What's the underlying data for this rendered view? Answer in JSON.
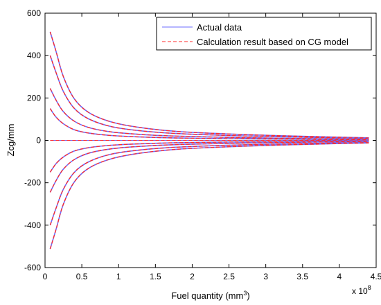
{
  "chart_data": {
    "type": "line",
    "title": "",
    "xlabel": "Fuel quantity (mm",
    "xlabel_sup": "3",
    "xlabel_end": ")",
    "ylabel": "Zcg/mm",
    "x_multiplier": "x 10",
    "x_multiplier_exp": "8",
    "xlim": [
      0,
      4.5
    ],
    "ylim": [
      -600,
      600
    ],
    "x_ticks": [
      "0",
      "0.5",
      "1",
      "1.5",
      "2",
      "2.5",
      "3",
      "3.5",
      "4",
      "4.5"
    ],
    "y_ticks": [
      "-600",
      "-400",
      "-200",
      "0",
      "200",
      "400",
      "600"
    ],
    "legend_position": "top-right",
    "grid": false,
    "colors": {
      "actual": "#6b6bff",
      "model": "#ff2a2a"
    },
    "series": [
      {
        "name": "Actual data",
        "style": "solid"
      },
      {
        "name": "Calculation result based on CG model",
        "style": "dashed"
      }
    ],
    "curves": [
      {
        "x": [
          0.07,
          0.15,
          0.25,
          0.4,
          0.6,
          0.9,
          1.3,
          1.8,
          2.5,
          3.2,
          4.0,
          4.4
        ],
        "y": [
          512,
          420,
          300,
          195,
          130,
          87,
          60,
          42,
          30,
          22,
          15,
          12
        ]
      },
      {
        "x": [
          0.07,
          0.15,
          0.25,
          0.4,
          0.6,
          0.9,
          1.3,
          1.8,
          2.5,
          3.2,
          4.0,
          4.4
        ],
        "y": [
          400,
          320,
          230,
          150,
          100,
          65,
          45,
          32,
          23,
          17,
          12,
          10
        ]
      },
      {
        "x": [
          0.07,
          0.15,
          0.25,
          0.4,
          0.6,
          0.9,
          1.3,
          1.8,
          2.5,
          3.2,
          4.0,
          4.4
        ],
        "y": [
          245,
          190,
          135,
          90,
          60,
          40,
          28,
          20,
          14,
          10,
          7,
          6
        ]
      },
      {
        "x": [
          0.07,
          0.15,
          0.25,
          0.4,
          0.6,
          0.9,
          1.3,
          1.8,
          2.5,
          3.2,
          4.0,
          4.4
        ],
        "y": [
          150,
          110,
          78,
          50,
          34,
          23,
          16,
          11,
          8,
          6,
          4,
          3
        ]
      },
      {
        "x": [
          0.07,
          0.15,
          0.25,
          0.4,
          0.6,
          0.9,
          1.3,
          1.8,
          2.5,
          3.2,
          4.0,
          4.4
        ],
        "y": [
          -150,
          -110,
          -78,
          -50,
          -34,
          -23,
          -16,
          -11,
          -8,
          -6,
          -4,
          -3
        ]
      },
      {
        "x": [
          0.07,
          0.15,
          0.25,
          0.4,
          0.6,
          0.9,
          1.3,
          1.8,
          2.5,
          3.2,
          4.0,
          4.4
        ],
        "y": [
          -245,
          -190,
          -135,
          -90,
          -60,
          -40,
          -28,
          -20,
          -14,
          -10,
          -7,
          -6
        ]
      },
      {
        "x": [
          0.07,
          0.15,
          0.25,
          0.4,
          0.6,
          0.9,
          1.3,
          1.8,
          2.5,
          3.2,
          4.0,
          4.4
        ],
        "y": [
          -400,
          -320,
          -230,
          -150,
          -100,
          -65,
          -45,
          -32,
          -23,
          -17,
          -12,
          -10
        ]
      },
      {
        "x": [
          0.07,
          0.15,
          0.25,
          0.4,
          0.6,
          0.9,
          1.3,
          1.8,
          2.5,
          3.2,
          4.0,
          4.4
        ],
        "y": [
          -512,
          -420,
          -300,
          -195,
          -130,
          -87,
          -60,
          -42,
          -30,
          -22,
          -15,
          -12
        ]
      }
    ]
  }
}
